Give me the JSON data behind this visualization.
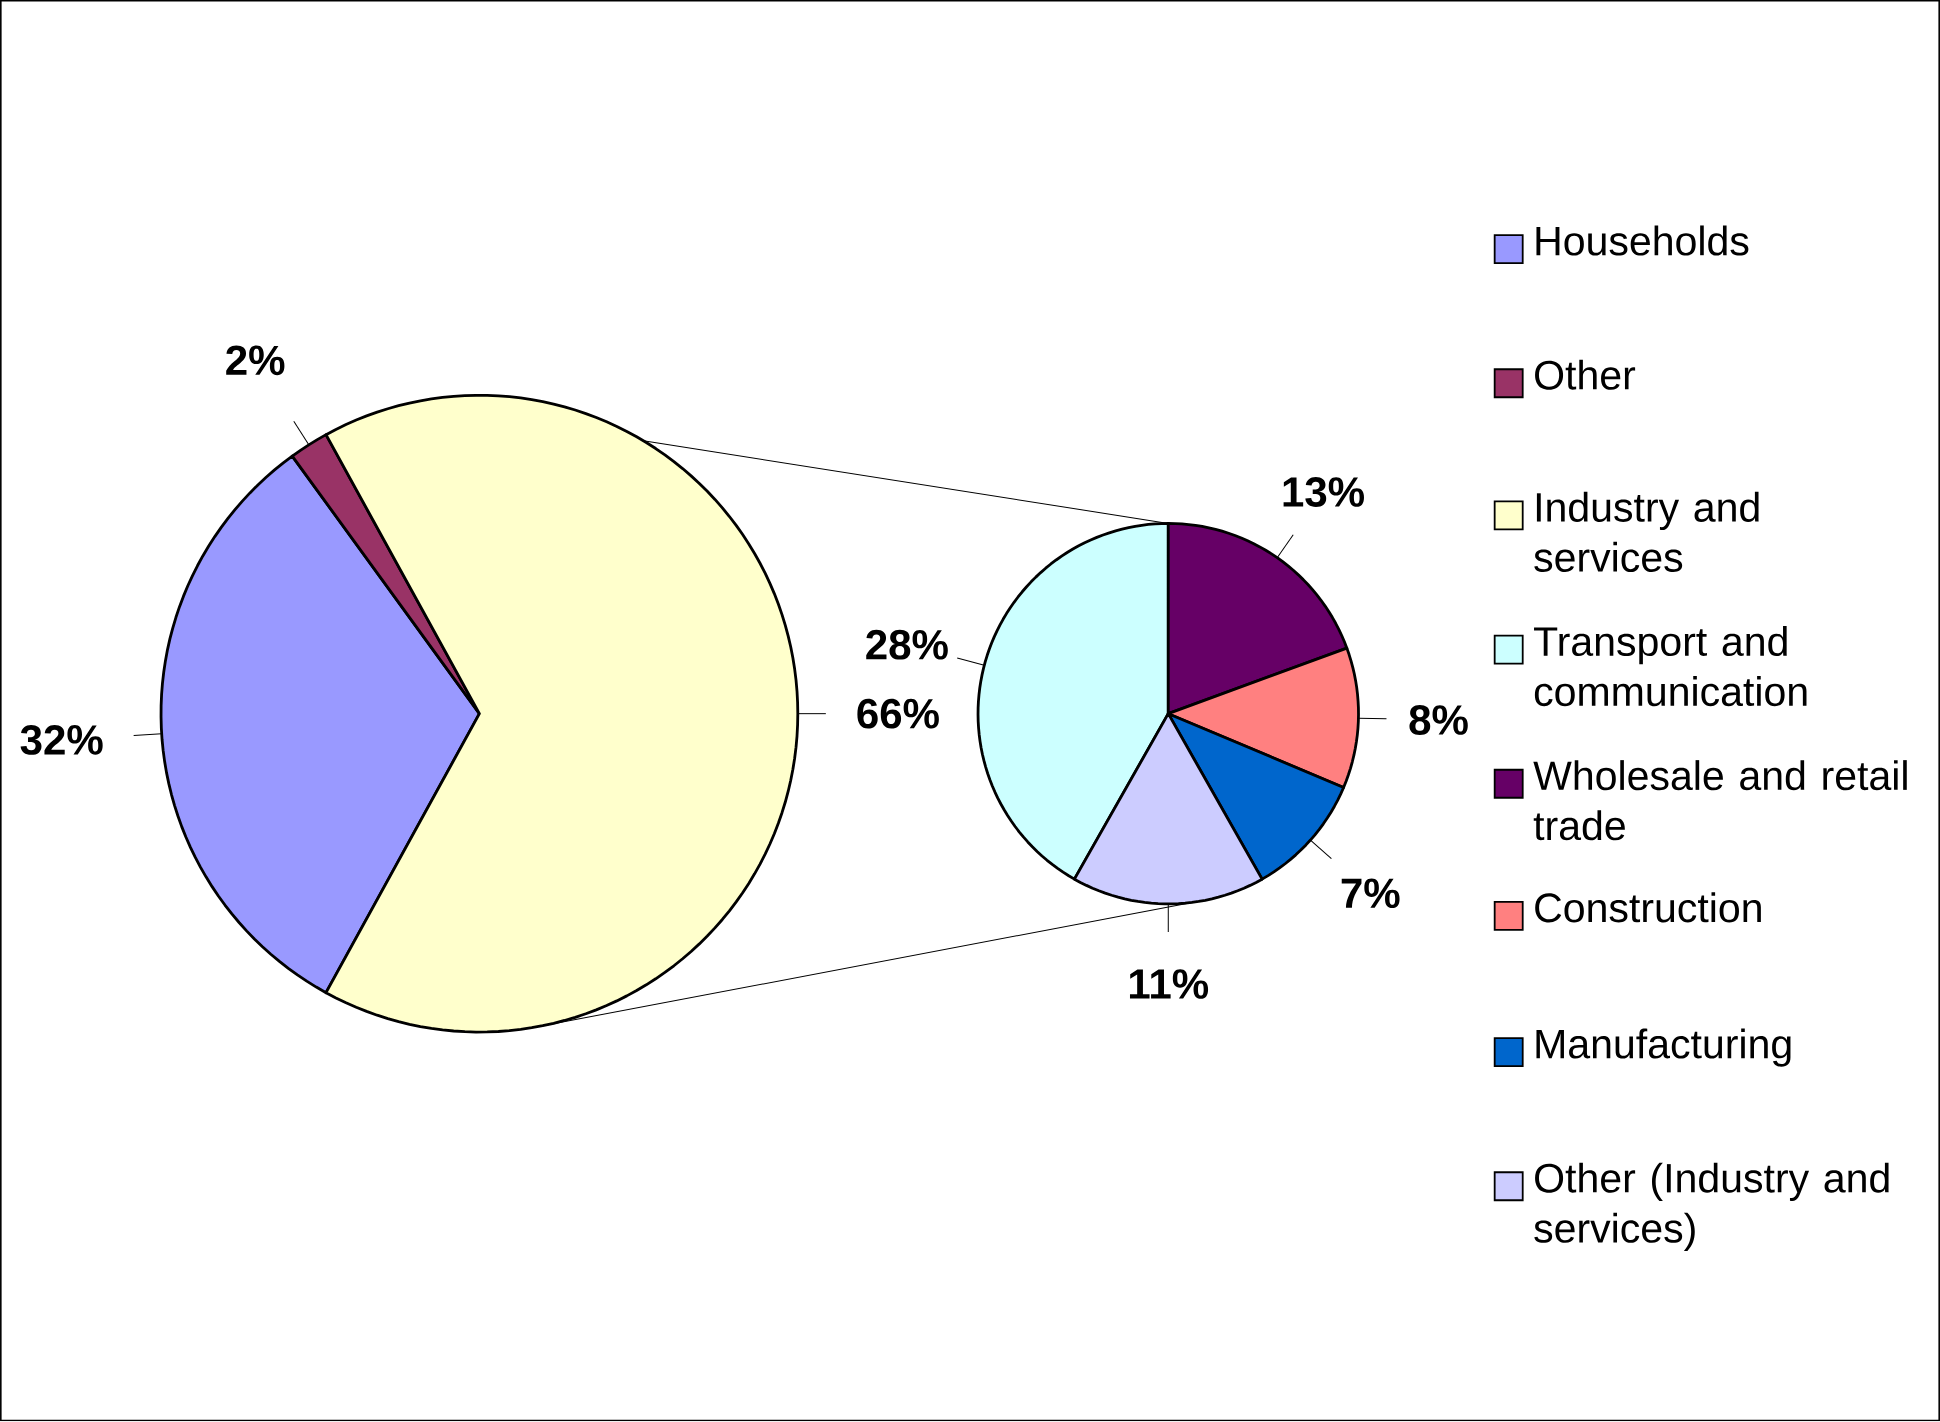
{
  "chart_data": [
    {
      "type": "pie",
      "categories": [
        "Households",
        "Other",
        "Industry and services"
      ],
      "values": [
        32,
        2,
        66
      ],
      "colors": [
        "#9999ff",
        "#993366",
        "#ffffcc"
      ],
      "value_labels": [
        "32%",
        "2%",
        "66%"
      ],
      "legend": "right"
    },
    {
      "type": "pie",
      "categories": [
        "Transport and communication",
        "Wholesale and retail trade",
        "Construction",
        "Manufacturing",
        "Other (Industry and services)"
      ],
      "values": [
        28,
        13,
        8,
        7,
        11
      ],
      "colors": [
        "#ccffff",
        "#660066",
        "#ff8080",
        "#0066cc",
        "#ccccff"
      ],
      "value_labels": [
        "28%",
        "13%",
        "8%",
        "7%",
        "11%"
      ],
      "legend": "right"
    }
  ]
}
